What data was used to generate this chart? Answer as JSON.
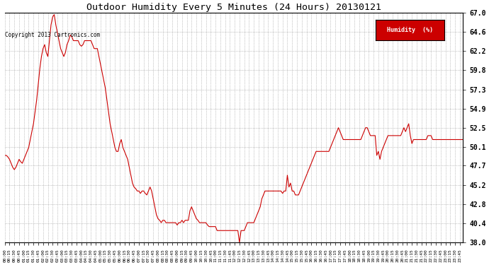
{
  "title": "Outdoor Humidity Every 5 Minutes (24 Hours) 20130121",
  "copyright_text": "Copyright 2013 Cartronics.com",
  "legend_label": "Humidity  (%)",
  "legend_bg": "#cc0000",
  "legend_text_color": "#ffffff",
  "line_color": "#cc0000",
  "bg_color": "#ffffff",
  "grid_color": "#aaaaaa",
  "title_color": "#000000",
  "ylim": [
    38.0,
    67.0
  ],
  "yticks": [
    38.0,
    40.4,
    42.8,
    45.2,
    47.7,
    50.1,
    52.5,
    54.9,
    57.3,
    59.8,
    62.2,
    64.6,
    67.0
  ],
  "humidity_values": [
    49.0,
    49.0,
    48.8,
    48.5,
    48.0,
    47.5,
    47.2,
    47.5,
    48.0,
    48.5,
    48.2,
    48.0,
    48.5,
    49.0,
    49.5,
    50.0,
    51.0,
    52.0,
    53.0,
    54.5,
    56.0,
    58.0,
    60.0,
    61.5,
    62.5,
    63.0,
    62.0,
    61.5,
    63.5,
    65.5,
    66.5,
    66.8,
    65.5,
    64.5,
    63.5,
    62.5,
    62.0,
    61.5,
    62.0,
    63.0,
    63.5,
    64.2,
    64.0,
    63.5,
    63.5,
    63.5,
    63.5,
    63.0,
    62.8,
    63.0,
    63.5,
    63.5,
    63.5,
    63.5,
    63.5,
    63.0,
    62.5,
    62.5,
    62.5,
    61.5,
    60.5,
    59.5,
    58.5,
    57.5,
    56.0,
    54.5,
    53.0,
    52.0,
    51.0,
    50.0,
    49.5,
    49.5,
    50.5,
    51.0,
    50.0,
    49.5,
    49.0,
    48.5,
    47.5,
    46.5,
    45.5,
    45.0,
    44.8,
    44.5,
    44.5,
    44.2,
    44.5,
    44.5,
    44.2,
    44.0,
    44.5,
    45.0,
    44.5,
    43.5,
    42.5,
    41.5,
    41.0,
    40.8,
    40.5,
    40.8,
    40.8,
    40.5,
    40.5,
    40.5,
    40.5,
    40.5,
    40.5,
    40.5,
    40.2,
    40.5,
    40.5,
    40.8,
    40.5,
    40.8,
    40.8,
    40.8,
    42.0,
    42.5,
    42.0,
    41.5,
    41.0,
    40.8,
    40.5,
    40.5,
    40.5,
    40.5,
    40.5,
    40.2,
    40.0,
    40.0,
    40.0,
    40.0,
    40.0,
    39.5,
    39.5,
    39.5,
    39.5,
    39.5,
    39.5,
    39.5,
    39.5,
    39.5,
    39.5,
    39.5,
    39.5,
    39.5,
    39.5,
    38.0,
    39.5,
    39.5,
    39.5,
    40.0,
    40.5,
    40.5,
    40.5,
    40.5,
    40.5,
    41.0,
    41.5,
    42.0,
    42.5,
    43.5,
    44.0,
    44.5,
    44.5,
    44.5,
    44.5,
    44.5,
    44.5,
    44.5,
    44.5,
    44.5,
    44.5,
    44.5,
    44.2,
    44.5,
    44.5,
    46.5,
    45.0,
    45.5,
    44.5,
    44.5,
    44.0,
    44.0,
    44.0,
    44.5,
    45.0,
    45.5,
    46.0,
    46.5,
    47.0,
    47.5,
    48.0,
    48.5,
    49.0,
    49.5,
    49.5,
    49.5,
    49.5,
    49.5,
    49.5,
    49.5,
    49.5,
    49.5,
    50.0,
    50.5,
    51.0,
    51.5,
    52.0,
    52.5,
    52.0,
    51.5,
    51.0,
    51.0,
    51.0,
    51.0,
    51.0,
    51.0,
    51.0,
    51.0,
    51.0,
    51.0,
    51.0,
    51.0,
    51.5,
    52.0,
    52.5,
    52.5,
    52.0,
    51.5,
    51.5,
    51.5,
    51.5,
    49.0,
    49.5,
    48.5,
    49.5,
    50.0,
    50.5,
    51.0,
    51.5,
    51.5,
    51.5,
    51.5,
    51.5,
    51.5,
    51.5,
    51.5,
    51.5,
    52.0,
    52.5,
    52.0,
    52.5,
    53.0,
    51.5,
    50.5,
    51.0,
    51.0,
    51.0,
    51.0,
    51.0,
    51.0,
    51.0,
    51.0,
    51.0,
    51.5,
    51.5,
    51.5,
    51.0,
    51.0,
    51.0,
    51.0,
    51.0,
    51.0,
    51.0,
    51.0,
    51.0,
    51.0,
    51.0,
    51.0,
    51.0,
    51.0,
    51.0,
    51.0,
    51.0,
    51.0,
    51.0,
    51.0
  ]
}
